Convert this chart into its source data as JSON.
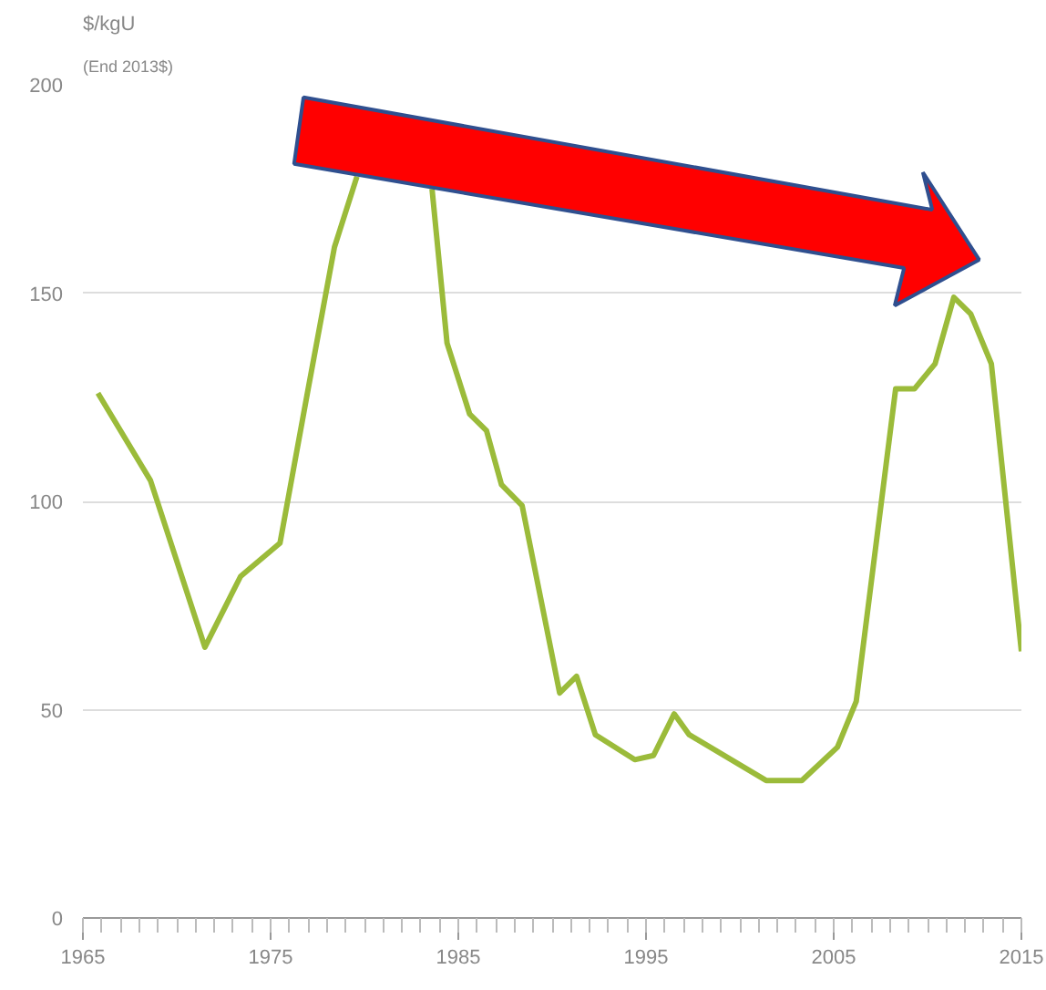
{
  "chart_data": {
    "type": "line",
    "ylabel": "$/kgU",
    "subtitle": "(End 2013$)",
    "x": [
      1965.8,
      1968.6,
      1971.5,
      1973.4,
      1975.5,
      1977.0,
      1978.4,
      1979.6,
      1981.5,
      1983.6,
      1984.4,
      1985.6,
      1986.5,
      1987.3,
      1988.4,
      1990.4,
      1991.3,
      1992.3,
      1994.4,
      1995.4,
      1996.5,
      1997.3,
      2001.4,
      2003.3,
      2005.2,
      2006.2,
      2008.3,
      2009.3,
      2010.4,
      2011.4,
      2012.3,
      2013.4,
      2015.0
    ],
    "series": [
      {
        "color": "#9bbb3a",
        "values": [
          126,
          105,
          65,
          82,
          90,
          127,
          161,
          178,
          null,
          175,
          138,
          121,
          117,
          104,
          99,
          54,
          58,
          44,
          38,
          39,
          49,
          44,
          33,
          33,
          41,
          52,
          127,
          127,
          133,
          149,
          145,
          133,
          64
        ]
      }
    ],
    "xlim": [
      1965,
      2015
    ],
    "xticks": [
      1965,
      1975,
      1985,
      1995,
      2005,
      2015
    ],
    "ylim": [
      0,
      200
    ],
    "yticks": [
      0,
      50,
      100,
      150,
      200
    ],
    "grid": "y",
    "marker": "none",
    "line_style": "solid"
  }
}
